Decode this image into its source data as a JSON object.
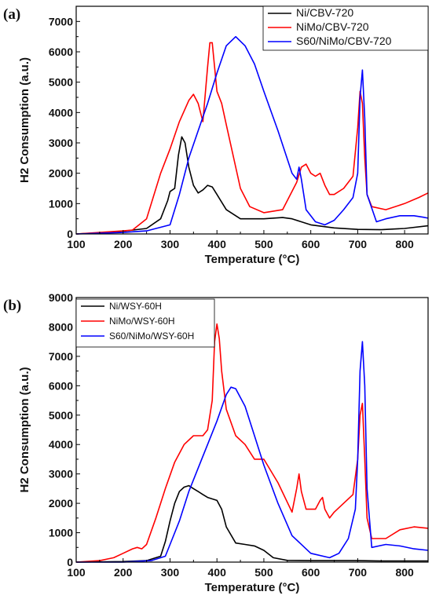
{
  "chart_data": [
    {
      "panel_label": "(a)",
      "type": "line",
      "xlabel": "Temperature (°C)",
      "ylabel": "H2 Consumption (a.u.)",
      "xlim": [
        100,
        850
      ],
      "ylim": [
        0,
        7500
      ],
      "x_ticks": [
        100,
        200,
        300,
        400,
        500,
        600,
        700,
        800
      ],
      "y_ticks": [
        0,
        1000,
        2000,
        3000,
        4000,
        5000,
        6000,
        7000
      ],
      "grid": false,
      "legend_position": "top-right",
      "series": [
        {
          "name": "Ni/CBV-720",
          "color": "#000000",
          "x": [
            100,
            150,
            200,
            250,
            280,
            295,
            300,
            305,
            310,
            318,
            325,
            332,
            340,
            350,
            360,
            370,
            380,
            390,
            400,
            420,
            450,
            500,
            540,
            560,
            600,
            650,
            700,
            750,
            800,
            850
          ],
          "y": [
            0,
            40,
            90,
            180,
            500,
            1100,
            1400,
            1450,
            1500,
            2600,
            3200,
            3000,
            2200,
            1600,
            1350,
            1450,
            1600,
            1550,
            1300,
            800,
            500,
            500,
            540,
            500,
            300,
            200,
            150,
            140,
            180,
            270
          ]
        },
        {
          "name": "NiMo/CBV-720",
          "color": "#ff0000",
          "x": [
            100,
            150,
            200,
            220,
            250,
            280,
            300,
            320,
            340,
            350,
            360,
            370,
            380,
            385,
            390,
            395,
            400,
            410,
            420,
            450,
            470,
            500,
            540,
            570,
            580,
            590,
            600,
            610,
            620,
            630,
            640,
            650,
            670,
            690,
            700,
            705,
            710,
            715,
            720,
            730,
            760,
            800,
            830,
            850
          ],
          "y": [
            0,
            50,
            100,
            130,
            500,
            2000,
            2800,
            3700,
            4400,
            4600,
            4300,
            3700,
            5500,
            6300,
            6300,
            5500,
            4700,
            4300,
            3600,
            1500,
            900,
            700,
            800,
            1700,
            2200,
            2300,
            2000,
            1900,
            2000,
            1600,
            1300,
            1300,
            1500,
            1900,
            3500,
            4700,
            4300,
            2500,
            1300,
            900,
            800,
            1000,
            1200,
            1350
          ]
        },
        {
          "name": "S60/NiMo/CBV-720",
          "color": "#0000ff",
          "x": [
            100,
            200,
            250,
            300,
            320,
            340,
            360,
            380,
            400,
            420,
            440,
            460,
            480,
            500,
            530,
            560,
            570,
            575,
            580,
            590,
            610,
            630,
            650,
            670,
            690,
            700,
            705,
            710,
            715,
            720,
            740,
            760,
            790,
            820,
            840,
            850
          ],
          "y": [
            0,
            50,
            100,
            300,
            1300,
            2500,
            3400,
            4300,
            5300,
            6200,
            6500,
            6200,
            5600,
            4700,
            3400,
            2000,
            1800,
            2200,
            1800,
            800,
            400,
            300,
            450,
            800,
            1200,
            2000,
            4500,
            5400,
            3800,
            1300,
            400,
            500,
            600,
            600,
            550,
            520
          ]
        }
      ]
    },
    {
      "panel_label": "(b)",
      "type": "line",
      "xlabel": "Temperature (°C)",
      "ylabel": "H2 Consumption (a.u.)",
      "xlim": [
        100,
        850
      ],
      "ylim": [
        0,
        9000
      ],
      "x_ticks": [
        100,
        200,
        300,
        400,
        500,
        600,
        700,
        800
      ],
      "y_ticks": [
        0,
        1000,
        2000,
        3000,
        4000,
        5000,
        6000,
        7000,
        8000,
        9000
      ],
      "grid": false,
      "legend_position": "top-left",
      "series": [
        {
          "name": "Ni/WSY-60H",
          "color": "#000000",
          "x": [
            100,
            200,
            250,
            280,
            290,
            300,
            310,
            320,
            330,
            340,
            350,
            360,
            370,
            380,
            390,
            400,
            410,
            420,
            440,
            460,
            480,
            500,
            520,
            550,
            600,
            650,
            700,
            750,
            800,
            850
          ],
          "y": [
            0,
            20,
            50,
            200,
            700,
            1400,
            2000,
            2400,
            2550,
            2600,
            2500,
            2400,
            2300,
            2200,
            2150,
            2100,
            1800,
            1200,
            650,
            600,
            550,
            400,
            150,
            60,
            50,
            50,
            50,
            40,
            40,
            40
          ]
        },
        {
          "name": "NiMo/WSY-60H",
          "color": "#ff0000",
          "x": [
            100,
            150,
            180,
            200,
            220,
            230,
            240,
            250,
            270,
            290,
            310,
            330,
            350,
            370,
            380,
            390,
            395,
            400,
            405,
            410,
            420,
            440,
            460,
            480,
            500,
            530,
            560,
            570,
            575,
            580,
            590,
            610,
            620,
            625,
            630,
            640,
            650,
            670,
            690,
            700,
            705,
            710,
            715,
            720,
            730,
            760,
            790,
            820,
            850
          ],
          "y": [
            0,
            50,
            150,
            300,
            450,
            500,
            450,
            600,
            1500,
            2500,
            3400,
            4000,
            4300,
            4300,
            4500,
            5500,
            7500,
            8100,
            7600,
            6500,
            5200,
            4300,
            4000,
            3500,
            3500,
            2700,
            1700,
            2500,
            3000,
            2400,
            1800,
            1800,
            2100,
            2200,
            1800,
            1500,
            1700,
            2000,
            2300,
            3500,
            5000,
            5400,
            3500,
            1500,
            800,
            800,
            1100,
            1200,
            1150
          ]
        },
        {
          "name": "S60/NiMo/WSY-60H",
          "color": "#0000ff",
          "x": [
            100,
            200,
            260,
            290,
            300,
            320,
            340,
            360,
            380,
            400,
            420,
            430,
            440,
            460,
            480,
            500,
            530,
            560,
            600,
            640,
            660,
            680,
            695,
            700,
            705,
            710,
            715,
            720,
            730,
            760,
            790,
            820,
            850
          ],
          "y": [
            0,
            0,
            50,
            200,
            600,
            1400,
            2400,
            3200,
            4000,
            4800,
            5700,
            5950,
            5900,
            5300,
            4300,
            3300,
            2000,
            900,
            300,
            150,
            300,
            800,
            1800,
            3500,
            6500,
            7500,
            6000,
            2500,
            500,
            600,
            550,
            450,
            400
          ]
        }
      ]
    }
  ]
}
